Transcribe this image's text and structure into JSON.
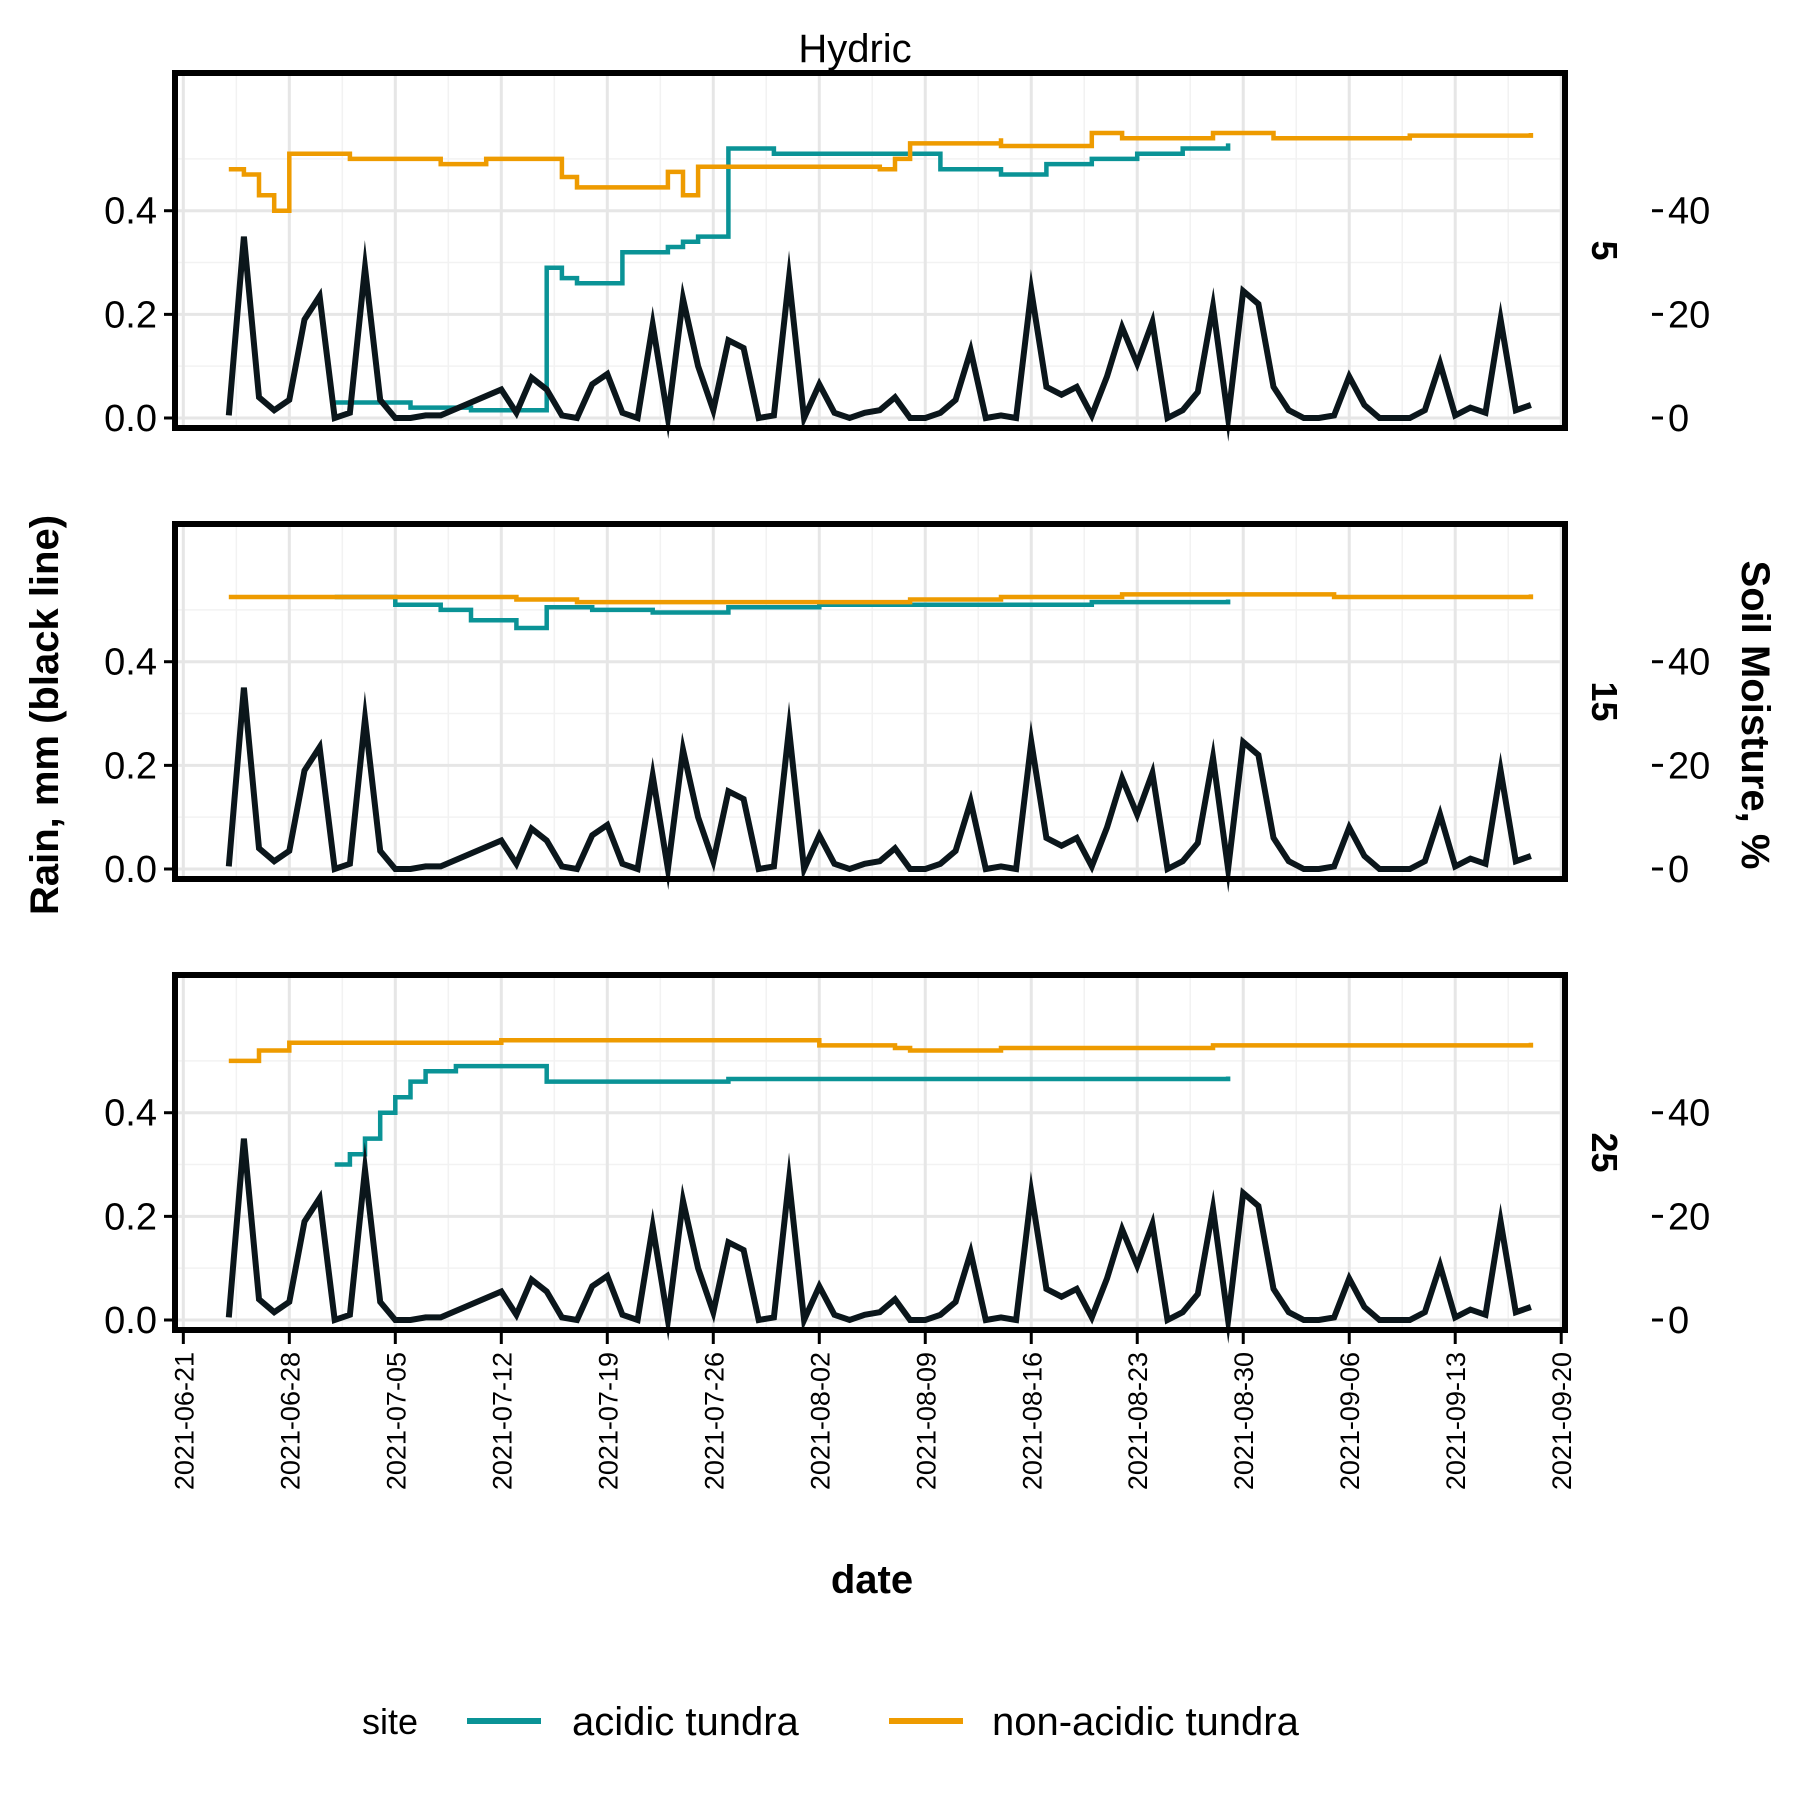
{
  "chart_data": {
    "type": "line",
    "title": "Hydric",
    "xlabel": "date",
    "ylabel_left": "Rain, mm (black line)",
    "ylabel_right": "Soil Moisture, %",
    "ylim_left": [
      0,
      0.55
    ],
    "ylim_right": [
      0,
      55
    ],
    "yticks_left": [
      "0.0",
      "0.2",
      "0.4"
    ],
    "yticks_right": [
      "0",
      "20",
      "40"
    ],
    "xticks": [
      "2021-06-21",
      "2021-06-28",
      "2021-07-05",
      "2021-07-12",
      "2021-07-19",
      "2021-07-26",
      "2021-08-02",
      "2021-08-09",
      "2021-08-16",
      "2021-08-23",
      "2021-08-30",
      "2021-09-06",
      "2021-09-13",
      "2021-09-20"
    ],
    "grid": true,
    "legend_position": "bottom",
    "legend_title": "site",
    "facets": [
      "5",
      "15",
      "25"
    ],
    "colors": {
      "rain": "#0b161b",
      "acidic": "#0a9396",
      "nonacidic": "#ee9b00"
    },
    "rain": {
      "name": "Rain",
      "points": [
        [
          "2021-06-24",
          0.005
        ],
        [
          "2021-06-25",
          0.35
        ],
        [
          "2021-06-26",
          0.04
        ],
        [
          "2021-06-27",
          0.015
        ],
        [
          "2021-06-28",
          0.035
        ],
        [
          "2021-06-29",
          0.19
        ],
        [
          "2021-06-30",
          0.235
        ],
        [
          "2021-07-01",
          0.0
        ],
        [
          "2021-07-02",
          0.01
        ],
        [
          "2021-07-03",
          0.29
        ],
        [
          "2021-07-04",
          0.035
        ],
        [
          "2021-07-05",
          0.0
        ],
        [
          "2021-07-06",
          0.0
        ],
        [
          "2021-07-07",
          0.005
        ],
        [
          "2021-07-08",
          0.005
        ],
        [
          "2021-07-12",
          0.055
        ],
        [
          "2021-07-13",
          0.01
        ],
        [
          "2021-07-14",
          0.078
        ],
        [
          "2021-07-15",
          0.055
        ],
        [
          "2021-07-16",
          0.005
        ],
        [
          "2021-07-17",
          0.0
        ],
        [
          "2021-07-18",
          0.065
        ],
        [
          "2021-07-19",
          0.085
        ],
        [
          "2021-07-20",
          0.01
        ],
        [
          "2021-07-21",
          0.0
        ],
        [
          "2021-07-22",
          0.18
        ],
        [
          "2021-07-23",
          0.0
        ],
        [
          "2021-07-24",
          0.23
        ],
        [
          "2021-07-25",
          0.1
        ],
        [
          "2021-07-26",
          0.015
        ],
        [
          "2021-07-27",
          0.15
        ],
        [
          "2021-07-28",
          0.135
        ],
        [
          "2021-07-29",
          0.0
        ],
        [
          "2021-07-30",
          0.005
        ],
        [
          "2021-07-31",
          0.27
        ],
        [
          "2021-08-01",
          0.0
        ],
        [
          "2021-08-02",
          0.065
        ],
        [
          "2021-08-03",
          0.01
        ],
        [
          "2021-08-04",
          0.0
        ],
        [
          "2021-08-05",
          0.01
        ],
        [
          "2021-08-06",
          0.015
        ],
        [
          "2021-08-07",
          0.04
        ],
        [
          "2021-08-08",
          0.0
        ],
        [
          "2021-08-09",
          0.0
        ],
        [
          "2021-08-10",
          0.01
        ],
        [
          "2021-08-11",
          0.035
        ],
        [
          "2021-08-12",
          0.13
        ],
        [
          "2021-08-13",
          0.0
        ],
        [
          "2021-08-14",
          0.005
        ],
        [
          "2021-08-15",
          0.0
        ],
        [
          "2021-08-16",
          0.245
        ],
        [
          "2021-08-17",
          0.06
        ],
        [
          "2021-08-18",
          0.045
        ],
        [
          "2021-08-19",
          0.06
        ],
        [
          "2021-08-20",
          0.005
        ],
        [
          "2021-08-21",
          0.08
        ],
        [
          "2021-08-22",
          0.175
        ],
        [
          "2021-08-23",
          0.105
        ],
        [
          "2021-08-24",
          0.185
        ],
        [
          "2021-08-25",
          0.0
        ],
        [
          "2021-08-26",
          0.015
        ],
        [
          "2021-08-27",
          0.05
        ],
        [
          "2021-08-28",
          0.215
        ],
        [
          "2021-08-29",
          0.0
        ],
        [
          "2021-08-30",
          0.245
        ],
        [
          "2021-08-31",
          0.22
        ],
        [
          "2021-09-01",
          0.06
        ],
        [
          "2021-09-02",
          0.015
        ],
        [
          "2021-09-03",
          0.0
        ],
        [
          "2021-09-04",
          0.0
        ],
        [
          "2021-09-05",
          0.005
        ],
        [
          "2021-09-06",
          0.08
        ],
        [
          "2021-09-07",
          0.025
        ],
        [
          "2021-09-08",
          0.0
        ],
        [
          "2021-09-09",
          0.0
        ],
        [
          "2021-09-10",
          0.0
        ],
        [
          "2021-09-11",
          0.015
        ],
        [
          "2021-09-12",
          0.105
        ],
        [
          "2021-09-13",
          0.005
        ],
        [
          "2021-09-14",
          0.02
        ],
        [
          "2021-09-15",
          0.01
        ],
        [
          "2021-09-16",
          0.19
        ],
        [
          "2021-09-17",
          0.015
        ],
        [
          "2021-09-18",
          0.025
        ]
      ]
    },
    "panels": [
      {
        "depth": "5",
        "series": [
          {
            "name": "acidic tundra",
            "points": [
              [
                "2021-07-01",
                3.0
              ],
              [
                "2021-07-06",
                2.0
              ],
              [
                "2021-07-10",
                1.5
              ],
              [
                "2021-07-15",
                1.5
              ],
              [
                "2021-07-15",
                29.0
              ],
              [
                "2021-07-16",
                27.0
              ],
              [
                "2021-07-17",
                26.0
              ],
              [
                "2021-07-19",
                26.0
              ],
              [
                "2021-07-20",
                26.0
              ],
              [
                "2021-07-20",
                32.0
              ],
              [
                "2021-07-23",
                33.0
              ],
              [
                "2021-07-24",
                34.0
              ],
              [
                "2021-07-25",
                35.0
              ],
              [
                "2021-07-27",
                35.5
              ],
              [
                "2021-07-27",
                52.0
              ],
              [
                "2021-07-30",
                51.0
              ],
              [
                "2021-08-10",
                48.0
              ],
              [
                "2021-08-14",
                47.0
              ],
              [
                "2021-08-16",
                47.0
              ],
              [
                "2021-08-17",
                49.0
              ],
              [
                "2021-08-20",
                50.0
              ],
              [
                "2021-08-23",
                51.0
              ],
              [
                "2021-08-26",
                52.0
              ],
              [
                "2021-08-29",
                53.0
              ]
            ]
          },
          {
            "name": "non-acidic tundra",
            "points": [
              [
                "2021-06-24",
                48.0
              ],
              [
                "2021-06-25",
                47.0
              ],
              [
                "2021-06-26",
                43.0
              ],
              [
                "2021-06-27",
                40.0
              ],
              [
                "2021-06-28",
                41.0
              ],
              [
                "2021-06-28",
                51.0
              ],
              [
                "2021-07-02",
                50.0
              ],
              [
                "2021-07-08",
                49.0
              ],
              [
                "2021-07-11",
                50.0
              ],
              [
                "2021-07-15",
                50.0
              ],
              [
                "2021-07-16",
                46.5
              ],
              [
                "2021-07-17",
                44.5
              ],
              [
                "2021-07-23",
                47.5
              ],
              [
                "2021-07-24",
                43.0
              ],
              [
                "2021-07-25",
                48.5
              ],
              [
                "2021-08-02",
                48.5
              ],
              [
                "2021-08-06",
                48.0
              ],
              [
                "2021-08-07",
                50.0
              ],
              [
                "2021-08-08",
                53.0
              ],
              [
                "2021-08-14",
                54.0
              ],
              [
                "2021-08-14",
                52.5
              ],
              [
                "2021-08-20",
                55.0
              ],
              [
                "2021-08-22",
                54.0
              ],
              [
                "2021-08-26",
                54.0
              ],
              [
                "2021-08-28",
                55.0
              ],
              [
                "2021-09-01",
                54.0
              ],
              [
                "2021-09-10",
                54.5
              ],
              [
                "2021-09-18",
                55.0
              ]
            ]
          }
        ]
      },
      {
        "depth": "15",
        "series": [
          {
            "name": "acidic tundra",
            "points": [
              [
                "2021-07-01",
                52.5
              ],
              [
                "2021-07-05",
                51.0
              ],
              [
                "2021-07-08",
                50.0
              ],
              [
                "2021-07-10",
                48.0
              ],
              [
                "2021-07-13",
                46.5
              ],
              [
                "2021-07-15",
                47.0
              ],
              [
                "2021-07-15",
                50.5
              ],
              [
                "2021-07-18",
                50.0
              ],
              [
                "2021-07-22",
                49.5
              ],
              [
                "2021-07-27",
                50.5
              ],
              [
                "2021-08-02",
                51.0
              ],
              [
                "2021-08-10",
                51.0
              ],
              [
                "2021-08-16",
                51.0
              ],
              [
                "2021-08-20",
                51.5
              ],
              [
                "2021-08-29",
                52.0
              ]
            ]
          },
          {
            "name": "non-acidic tundra",
            "points": [
              [
                "2021-06-24",
                52.5
              ],
              [
                "2021-07-03",
                52.5
              ],
              [
                "2021-07-13",
                52.0
              ],
              [
                "2021-07-17",
                51.5
              ],
              [
                "2021-07-23",
                51.5
              ],
              [
                "2021-07-25",
                51.5
              ],
              [
                "2021-08-02",
                51.5
              ],
              [
                "2021-08-06",
                51.5
              ],
              [
                "2021-08-08",
                52.0
              ],
              [
                "2021-08-14",
                52.5
              ],
              [
                "2021-08-22",
                53.0
              ],
              [
                "2021-08-28",
                53.0
              ],
              [
                "2021-09-05",
                52.5
              ],
              [
                "2021-09-18",
                53.0
              ]
            ]
          }
        ]
      },
      {
        "depth": "25",
        "series": [
          {
            "name": "acidic tundra",
            "points": [
              [
                "2021-07-01",
                30.0
              ],
              [
                "2021-07-02",
                32.0
              ],
              [
                "2021-07-03",
                35.0
              ],
              [
                "2021-07-04",
                40.0
              ],
              [
                "2021-07-05",
                43.0
              ],
              [
                "2021-07-06",
                46.0
              ],
              [
                "2021-07-07",
                48.0
              ],
              [
                "2021-07-09",
                49.0
              ],
              [
                "2021-07-15",
                48.5
              ],
              [
                "2021-07-15",
                46.0
              ],
              [
                "2021-07-21",
                46.0
              ],
              [
                "2021-07-27",
                46.5
              ],
              [
                "2021-08-16",
                46.5
              ],
              [
                "2021-08-29",
                47.0
              ]
            ]
          },
          {
            "name": "non-acidic tundra",
            "points": [
              [
                "2021-06-24",
                50.0
              ],
              [
                "2021-06-26",
                52.0
              ],
              [
                "2021-06-28",
                53.5
              ],
              [
                "2021-07-12",
                54.0
              ],
              [
                "2021-08-02",
                53.0
              ],
              [
                "2021-08-07",
                52.5
              ],
              [
                "2021-08-08",
                52.0
              ],
              [
                "2021-08-14",
                52.5
              ],
              [
                "2021-08-28",
                53.0
              ],
              [
                "2021-09-18",
                53.5
              ]
            ]
          }
        ]
      }
    ]
  }
}
